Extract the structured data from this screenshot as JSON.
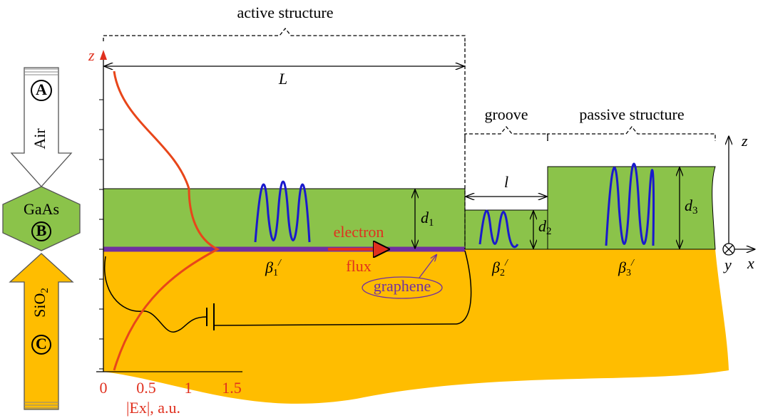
{
  "labels": {
    "active_structure": "active structure",
    "length_L": "L",
    "groove": "groove",
    "passive_structure": "passive structure",
    "length_l": "l",
    "d1": {
      "symbol": "d",
      "subscript": "1"
    },
    "d2": {
      "symbol": "d",
      "subscript": "2"
    },
    "d3": {
      "symbol": "d",
      "subscript": "3"
    },
    "electron": "electron",
    "flux": "flux",
    "graphene": "graphene",
    "beta1": {
      "symbol": "β",
      "subscript": "1",
      "prime": "/"
    },
    "beta2": {
      "symbol": "β",
      "subscript": "2",
      "prime": "/"
    },
    "beta3": {
      "symbol": "β",
      "subscript": "3",
      "prime": "/"
    }
  },
  "field_axis": {
    "z_label": "z",
    "ticks": [
      "0",
      "0.5",
      "1",
      "1.5"
    ],
    "x_label": "|Ex|, a.u."
  },
  "coordinate_axes": {
    "z": "z",
    "x": "x",
    "y": "y"
  },
  "media": {
    "air": {
      "name": "Air",
      "marker": "A"
    },
    "gaas": {
      "name": "GaAs",
      "marker": "B"
    },
    "sio2": {
      "name": "SiO",
      "subscript": "2",
      "marker": "C"
    }
  }
}
